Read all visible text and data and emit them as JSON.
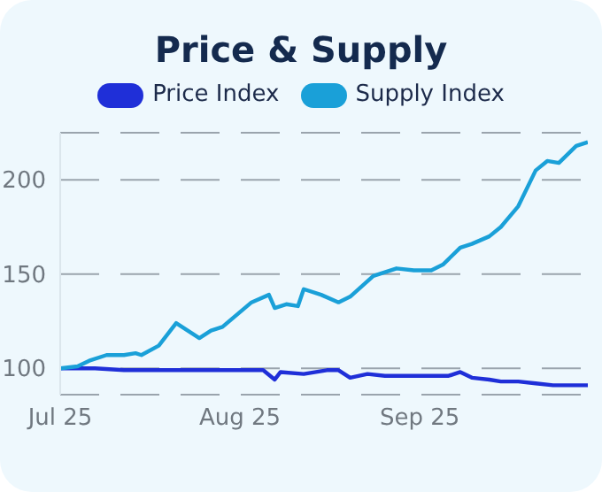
{
  "chart_data": {
    "type": "line",
    "title": "Price & Supply",
    "legend": "top",
    "grid": "y",
    "line_style": "solid",
    "marker": "none",
    "xlim": [
      "2025-07-01",
      "2025-09-30"
    ],
    "xticks": [
      {
        "value": "2025-07-01",
        "label": "Jul 25"
      },
      {
        "value": "2025-08-01",
        "label": "Aug 25"
      },
      {
        "value": "2025-09-01",
        "label": "Sep 25"
      }
    ],
    "ylim": [
      86,
      225
    ],
    "yticks": [
      100,
      150,
      200
    ],
    "series": [
      {
        "name": "Price Index",
        "color": "#1f2fd8",
        "x": [
          "2025-07-01",
          "2025-07-07",
          "2025-07-12",
          "2025-07-14",
          "2025-07-17",
          "2025-07-23",
          "2025-07-31",
          "2025-08-05",
          "2025-08-07",
          "2025-08-08",
          "2025-08-12",
          "2025-08-16",
          "2025-08-18",
          "2025-08-20",
          "2025-08-23",
          "2025-08-26",
          "2025-08-31",
          "2025-09-06",
          "2025-09-08",
          "2025-09-10",
          "2025-09-13",
          "2025-09-15",
          "2025-09-18",
          "2025-09-21",
          "2025-09-24",
          "2025-09-30"
        ],
        "values": [
          100,
          100,
          99,
          99,
          99,
          99,
          99,
          99,
          94,
          98,
          97,
          99,
          99,
          95,
          97,
          96,
          96,
          96,
          98,
          95,
          94,
          93,
          93,
          92,
          91,
          91
        ]
      },
      {
        "name": "Supply Index",
        "color": "#1aa0d8",
        "x": [
          "2025-07-01",
          "2025-07-04",
          "2025-07-06",
          "2025-07-09",
          "2025-07-12",
          "2025-07-14",
          "2025-07-15",
          "2025-07-18",
          "2025-07-21",
          "2025-07-25",
          "2025-07-27",
          "2025-07-29",
          "2025-08-03",
          "2025-08-06",
          "2025-08-07",
          "2025-08-09",
          "2025-08-11",
          "2025-08-12",
          "2025-08-15",
          "2025-08-18",
          "2025-08-20",
          "2025-08-24",
          "2025-08-28",
          "2025-08-31",
          "2025-09-03",
          "2025-09-05",
          "2025-09-08",
          "2025-09-10",
          "2025-09-13",
          "2025-09-15",
          "2025-09-18",
          "2025-09-21",
          "2025-09-23",
          "2025-09-25",
          "2025-09-28",
          "2025-09-30"
        ],
        "values": [
          100,
          101,
          104,
          107,
          107,
          108,
          107,
          112,
          124,
          116,
          120,
          122,
          135,
          139,
          132,
          134,
          133,
          142,
          139,
          135,
          138,
          149,
          153,
          152,
          152,
          155,
          164,
          166,
          170,
          175,
          186,
          205,
          210,
          209,
          218,
          220
        ]
      }
    ]
  }
}
